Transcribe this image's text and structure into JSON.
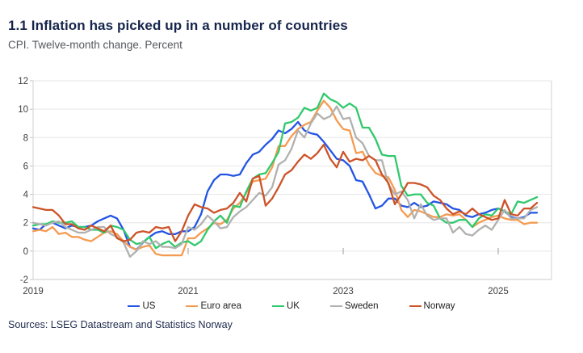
{
  "header": {
    "title": "1.1 Inflation has picked up in a number of countries",
    "subtitle": "CPI. Twelve-month change. Percent"
  },
  "footer": {
    "sources": "Sources: LSEG Datastream and Statistics Norway"
  },
  "colors": {
    "title_navy": "#16254c",
    "subtitle_gray": "#55585e",
    "gridline": "#e6e6e6",
    "plot_border": "#d2d2d2",
    "tick": "#9c9c9c",
    "axis_label": "#3f3f3f"
  },
  "chart_data": {
    "type": "line",
    "title": "1.1 Inflation has picked up in a number of countries",
    "subtitle": "CPI. Twelve-month change. Percent",
    "x_unit": "month",
    "x_start": "2019-01",
    "x_end": "2025-07",
    "months_total": 79,
    "ylim": [
      -2,
      12
    ],
    "yticks": [
      -2,
      0,
      2,
      4,
      6,
      8,
      10,
      12
    ],
    "xticks": [
      {
        "label": "2019",
        "month_index": 0
      },
      {
        "label": "2021",
        "month_index": 24
      },
      {
        "label": "2023",
        "month_index": 48
      },
      {
        "label": "2025",
        "month_index": 72
      }
    ],
    "grid": "horizontal",
    "legend_position": "bottom",
    "series": [
      {
        "name": "US",
        "color": "#2355e4",
        "values": [
          1.6,
          1.5,
          1.9,
          2.0,
          1.8,
          1.6,
          1.8,
          1.7,
          1.7,
          1.8,
          2.1,
          2.3,
          2.5,
          2.3,
          1.5,
          0.3,
          0.1,
          0.6,
          1.0,
          1.3,
          1.4,
          1.2,
          1.2,
          1.4,
          1.4,
          1.7,
          2.6,
          4.2,
          5.0,
          5.4,
          5.4,
          5.3,
          5.4,
          6.2,
          6.8,
          7.0,
          7.5,
          7.9,
          8.5,
          8.3,
          8.6,
          9.1,
          8.5,
          8.3,
          8.2,
          7.7,
          7.1,
          6.5,
          6.4,
          6.0,
          5.0,
          4.9,
          4.0,
          3.0,
          3.2,
          3.7,
          3.7,
          3.2,
          3.1,
          3.4,
          3.1,
          3.2,
          3.5,
          3.4,
          3.3,
          3.0,
          2.9,
          2.5,
          2.4,
          2.6,
          2.7,
          2.9,
          3.0,
          2.8,
          2.4,
          2.3,
          2.4,
          2.7,
          2.7
        ]
      },
      {
        "name": "Euro area",
        "color": "#f59b51",
        "values": [
          1.4,
          1.5,
          1.4,
          1.7,
          1.2,
          1.3,
          1.0,
          1.0,
          0.8,
          0.7,
          1.0,
          1.3,
          1.4,
          1.2,
          0.7,
          0.3,
          0.1,
          0.3,
          0.4,
          -0.2,
          -0.3,
          -0.3,
          -0.3,
          -0.3,
          0.9,
          0.9,
          1.3,
          1.6,
          2.0,
          1.9,
          2.2,
          3.0,
          3.4,
          4.1,
          4.9,
          5.0,
          5.1,
          5.9,
          7.4,
          7.4,
          8.1,
          8.6,
          8.9,
          9.1,
          9.9,
          10.6,
          10.1,
          9.2,
          8.6,
          8.5,
          6.9,
          7.0,
          6.1,
          5.5,
          5.3,
          5.2,
          4.3,
          2.9,
          2.4,
          2.9,
          2.8,
          2.6,
          2.4,
          2.4,
          2.6,
          2.5,
          2.6,
          2.2,
          1.7,
          2.0,
          2.2,
          2.4,
          2.5,
          2.3,
          2.2,
          2.2,
          1.9,
          2.0,
          2.0
        ]
      },
      {
        "name": "UK",
        "color": "#31c96d",
        "values": [
          1.8,
          1.9,
          1.9,
          2.1,
          2.0,
          2.0,
          2.1,
          1.7,
          1.7,
          1.5,
          1.5,
          1.3,
          1.8,
          1.7,
          1.5,
          0.8,
          0.5,
          0.6,
          1.0,
          0.2,
          0.5,
          0.7,
          0.3,
          0.6,
          0.7,
          0.4,
          0.7,
          1.5,
          2.1,
          2.5,
          2.0,
          3.2,
          3.1,
          4.2,
          5.1,
          5.4,
          5.5,
          6.2,
          7.0,
          9.0,
          9.1,
          9.4,
          10.1,
          9.9,
          10.1,
          11.1,
          10.7,
          10.5,
          10.1,
          10.4,
          10.1,
          8.7,
          8.7,
          7.9,
          6.8,
          6.7,
          6.7,
          4.6,
          3.9,
          4.0,
          4.0,
          3.4,
          3.2,
          2.3,
          2.0,
          2.0,
          2.2,
          2.2,
          1.7,
          2.3,
          2.6,
          2.5,
          3.0,
          2.8,
          2.6,
          3.5,
          3.4,
          3.6,
          3.8
        ]
      },
      {
        "name": "Sweden",
        "color": "#b1b1af",
        "values": [
          2.0,
          1.9,
          1.8,
          2.0,
          2.1,
          1.7,
          1.5,
          1.3,
          1.3,
          1.5,
          1.7,
          1.7,
          1.2,
          1.0,
          0.6,
          -0.4,
          0.0,
          0.7,
          0.5,
          0.7,
          0.3,
          0.3,
          0.2,
          0.5,
          1.7,
          1.5,
          1.9,
          2.5,
          2.1,
          1.6,
          1.7,
          2.4,
          2.8,
          3.1,
          3.6,
          4.1,
          3.9,
          4.5,
          6.1,
          6.4,
          7.2,
          8.5,
          8.0,
          9.0,
          9.7,
          9.3,
          9.5,
          10.2,
          9.3,
          9.4,
          8.0,
          7.6,
          6.7,
          6.4,
          6.4,
          4.7,
          4.0,
          4.2,
          3.6,
          2.3,
          3.3,
          2.5,
          2.2,
          2.3,
          2.3,
          1.3,
          1.7,
          1.2,
          1.1,
          1.5,
          1.8,
          1.5,
          2.2,
          2.9,
          2.3,
          2.3,
          2.3,
          2.9,
          3.1
        ]
      },
      {
        "name": "Norway",
        "color": "#cd5328",
        "values": [
          3.1,
          3.0,
          2.9,
          2.9,
          2.5,
          1.9,
          1.9,
          1.6,
          1.5,
          1.8,
          1.6,
          1.4,
          1.8,
          0.9,
          0.7,
          0.8,
          1.3,
          1.4,
          1.3,
          1.7,
          1.6,
          1.7,
          0.7,
          1.4,
          2.5,
          3.3,
          3.1,
          3.0,
          2.7,
          2.9,
          3.0,
          3.4,
          4.1,
          3.5,
          5.1,
          5.3,
          3.2,
          3.7,
          4.5,
          5.4,
          5.7,
          6.3,
          6.8,
          6.5,
          6.9,
          7.5,
          6.5,
          5.9,
          7.0,
          6.3,
          6.5,
          6.4,
          6.7,
          6.4,
          5.4,
          4.8,
          3.3,
          4.0,
          4.8,
          4.8,
          4.7,
          4.5,
          3.9,
          3.6,
          3.0,
          2.6,
          2.8,
          2.6,
          3.0,
          2.6,
          2.4,
          2.2,
          2.3,
          3.6,
          2.6,
          2.5,
          3.0,
          3.0,
          3.4
        ]
      }
    ]
  }
}
